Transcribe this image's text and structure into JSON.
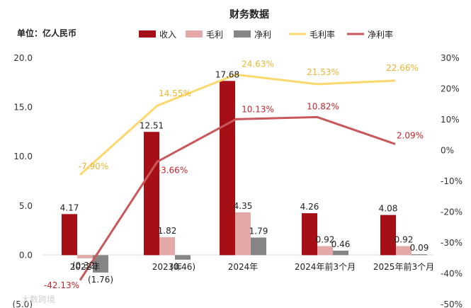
{
  "chart_data": {
    "type": "bar",
    "title": "财务数据",
    "unit_label": "单位：亿人民币",
    "categories": [
      "2022年",
      "2023年",
      "2024年",
      "2024年前3个月",
      "2025年前3个月"
    ],
    "left_axis": {
      "ticks": [
        "20.0",
        "15.0",
        "10.0",
        "5.0",
        "0.0",
        "(5.0)"
      ],
      "ylim": [
        -5,
        20
      ]
    },
    "right_axis": {
      "ticks": [
        "30%",
        "20%",
        "10%",
        "0%",
        "-10%",
        "-20%",
        "-30%",
        "-40%",
        "-50%"
      ],
      "ylim": [
        -50,
        30
      ]
    },
    "bar_series": [
      {
        "name": "收入",
        "color": "#a50f15",
        "values": [
          4.17,
          12.51,
          17.68,
          4.26,
          4.08
        ],
        "labels": [
          "4.17",
          "12.51",
          "17.68",
          "4.26",
          "4.08"
        ]
      },
      {
        "name": "毛利",
        "color": "#e3a9a9",
        "values": [
          -0.32,
          1.82,
          4.35,
          0.92,
          0.92
        ],
        "labels": [
          "(0.32)",
          "1.82",
          "4.35",
          "0.92",
          "0.92"
        ]
      },
      {
        "name": "净利",
        "color": "#858585",
        "values": [
          -1.76,
          -0.46,
          1.79,
          0.46,
          0.09
        ],
        "labels": [
          "(1.76)",
          "(0.46)",
          "1.79",
          "0.46",
          "0.09"
        ]
      }
    ],
    "line_series": [
      {
        "name": "毛利率",
        "color": "#fdd86c",
        "values": [
          -7.9,
          14.55,
          24.63,
          21.53,
          22.66
        ],
        "labels": [
          "-7.90%",
          "14.55%",
          "24.63%",
          "21.53%",
          "22.66%"
        ]
      },
      {
        "name": "净利率",
        "color": "#c9585c",
        "values": [
          -42.13,
          -3.66,
          10.13,
          10.82,
          2.09
        ],
        "labels": [
          "-42.13%",
          "-3.66%",
          "10.13%",
          "10.82%",
          "2.09%"
        ]
      }
    ],
    "legend_position": "top",
    "grid": false,
    "watermark": "大数跨境"
  }
}
